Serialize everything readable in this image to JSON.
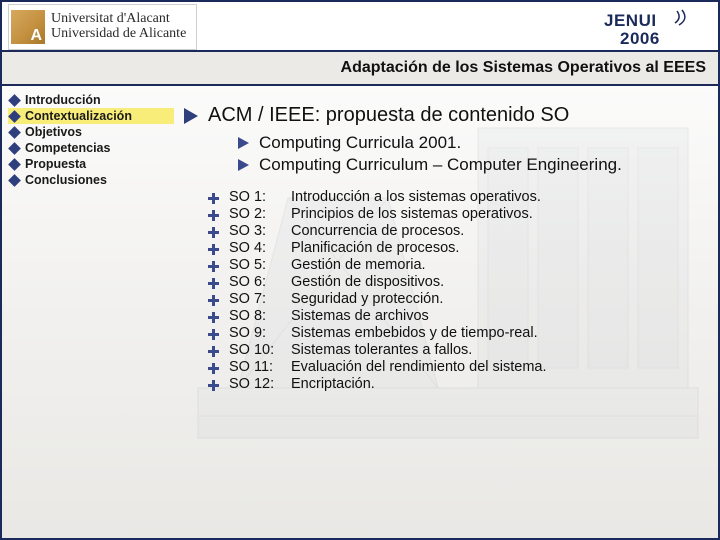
{
  "colors": {
    "frame": "#1b2a5b",
    "accent_diamond": "#2f3f7d",
    "arrow_main": "#2f3f7d",
    "arrow_sub": "#3a4a8d",
    "highlight": "#f9ed7a",
    "subtitle_bg": "#eceae6",
    "text": "#111111",
    "bg_gradient_top": "#ffffff",
    "bg_gradient_bottom": "#e9e8e5",
    "conf_logo": "#1b2a5b"
  },
  "typography": {
    "title_fontsize_pt": 15,
    "sub_fontsize_pt": 13,
    "list_fontsize_pt": 11,
    "sidebar_fontsize_pt": 9,
    "font_family": "Arial"
  },
  "header": {
    "university_line1": "Universitat d'Alacant",
    "university_line2": "Universidad de Alicante",
    "conference_name": "JENUI",
    "conference_year": "2006",
    "subtitle": "Adaptación de los Sistemas Operativos al EEES"
  },
  "sidebar": {
    "items": [
      {
        "label": "Introducción",
        "active": false
      },
      {
        "label": "Contextualización",
        "active": true
      },
      {
        "label": "Objetivos",
        "active": false
      },
      {
        "label": "Competencias",
        "active": false
      },
      {
        "label": "Propuesta",
        "active": false
      },
      {
        "label": "Conclusiones",
        "active": false
      }
    ]
  },
  "main": {
    "title": "ACM / IEEE: propuesta de contenido SO",
    "subpoints": [
      "Computing Curricula 2001.",
      "Computing Curriculum – Computer Engineering."
    ],
    "so_items": [
      {
        "code": "SO 1:",
        "text": "Introducción a los sistemas operativos."
      },
      {
        "code": "SO 2:",
        "text": "Principios de los sistemas operativos."
      },
      {
        "code": "SO 3:",
        "text": "Concurrencia de procesos."
      },
      {
        "code": "SO 4:",
        "text": "Planificación de procesos."
      },
      {
        "code": "SO 5:",
        "text": "Gestión de memoria."
      },
      {
        "code": "SO 6:",
        "text": "Gestión de dispositivos."
      },
      {
        "code": "SO 7:",
        "text": "Seguridad y protección."
      },
      {
        "code": "SO 8:",
        "text": "Sistemas de archivos"
      },
      {
        "code": "SO 9:",
        "text": "Sistemas embebidos y de tiempo-real."
      },
      {
        "code": "SO 10:",
        "text": "Sistemas tolerantes a fallos."
      },
      {
        "code": "SO 11:",
        "text": "Evaluación del rendimiento del sistema."
      },
      {
        "code": "SO 12:",
        "text": "Encriptación."
      }
    ]
  }
}
